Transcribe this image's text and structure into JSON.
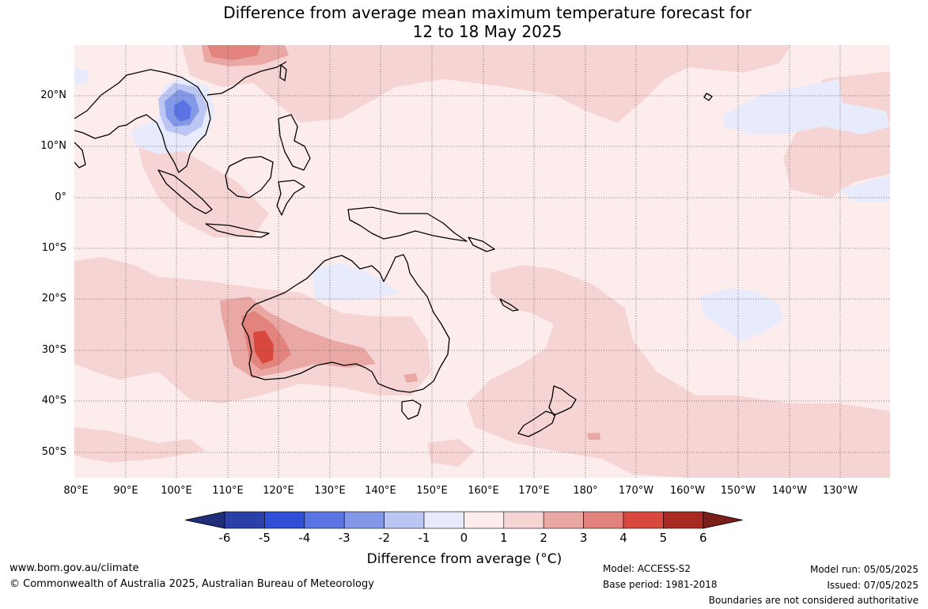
{
  "title": {
    "line1": "Difference from average mean maximum temperature forecast for",
    "line2": "12 to 18 May 2025"
  },
  "map": {
    "lat_labels": [
      "20°N",
      "10°N",
      "0°",
      "10°S",
      "20°S",
      "30°S",
      "40°S",
      "50°S"
    ],
    "lon_labels": [
      "80°E",
      "90°E",
      "100°E",
      "110°E",
      "120°E",
      "130°E",
      "140°E",
      "150°E",
      "160°E",
      "170°E",
      "180°",
      "170°W",
      "160°W",
      "150°W",
      "140°W",
      "130°W"
    ]
  },
  "colorbar": {
    "ticks": [
      "-6",
      "-5",
      "-4",
      "-3",
      "-2",
      "-1",
      "0",
      "1",
      "2",
      "3",
      "4",
      "5",
      "6"
    ],
    "colors": [
      "#2b3fa8",
      "#2f4fd6",
      "#5a75e3",
      "#8399e8",
      "#bcc6f2",
      "#e8ebfb",
      "#fcecec",
      "#f6d4d4",
      "#eaa8a5",
      "#e2837d",
      "#d9483c",
      "#a82a22"
    ],
    "low_extend_color": "#1e2e78",
    "high_extend_color": "#7a1e18",
    "title": "Difference from average (°C)"
  },
  "footer": {
    "website": "www.bom.gov.au/climate",
    "copyright": "© Commonwealth of Australia 2025, Australian Bureau of Meteorology",
    "model": "Model: ACCESS-S2",
    "base_period": "Base period: 1981-2018",
    "model_run": "Model run: 05/05/2025",
    "issued": "Issued: 07/05/2025",
    "disclaimer": "Boundaries are not considered authoritative"
  }
}
